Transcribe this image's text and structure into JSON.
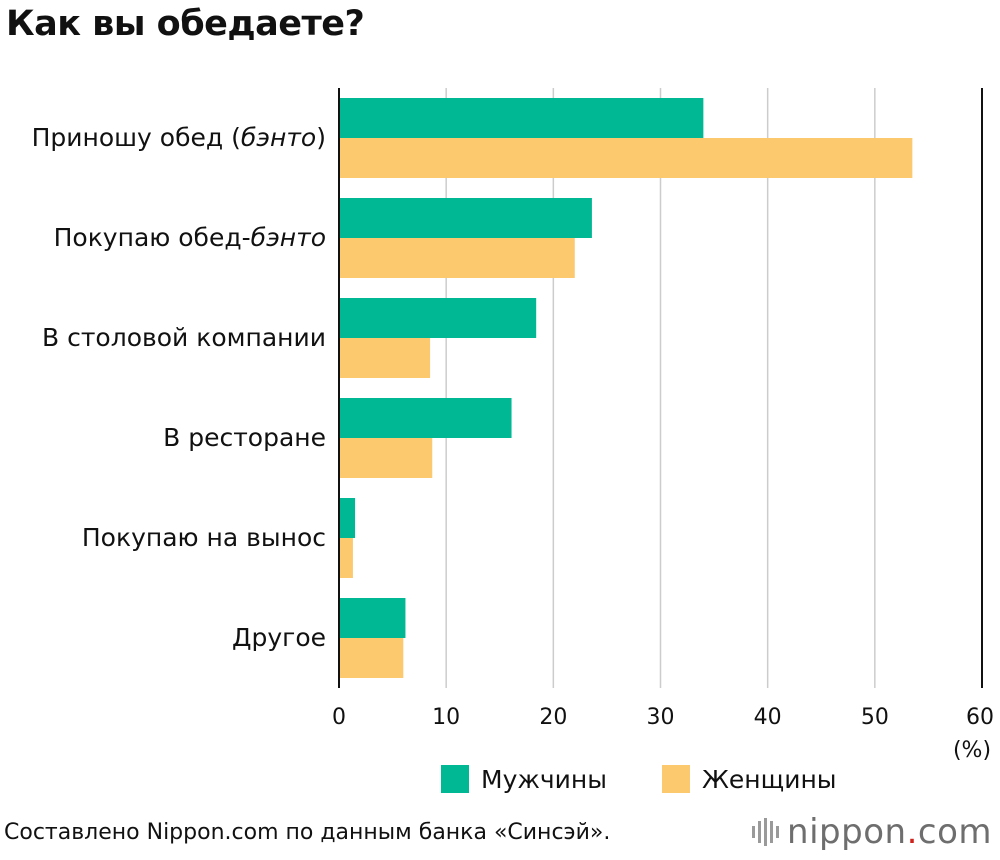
{
  "title": "Как вы обедаете?",
  "source": "Составлено Nippon.com по данным банка «Синсэй».",
  "logo": {
    "prefix": "nippon",
    "dot": ".",
    "suffix": "com",
    "mark_color": "#9a9a9a",
    "dot_color": "#d0211c"
  },
  "chart_data": {
    "type": "bar",
    "orientation": "horizontal",
    "title": "Как вы обедаете?",
    "categories": [
      {
        "plain": "Приношу обед (",
        "italic": "бэнто",
        "after": ")"
      },
      {
        "plain": "Покупаю обед-",
        "italic": "бэнто",
        "after": ""
      },
      {
        "plain": "В столовой компании",
        "italic": "",
        "after": ""
      },
      {
        "plain": "В ресторане",
        "italic": "",
        "after": ""
      },
      {
        "plain": "Покупаю на вынос",
        "italic": "",
        "after": ""
      },
      {
        "plain": "Другое",
        "italic": "",
        "after": ""
      }
    ],
    "series": [
      {
        "name": "Мужчины",
        "color": "#00b894",
        "values": [
          34.0,
          23.6,
          18.4,
          16.1,
          1.5,
          6.2
        ]
      },
      {
        "name": "Женщины",
        "color": "#fcc96e",
        "values": [
          53.5,
          22.0,
          8.5,
          8.7,
          1.3,
          6.0
        ]
      }
    ],
    "xlim": [
      0,
      60
    ],
    "xticks": [
      "0",
      "10",
      "20",
      "30",
      "40",
      "50",
      "60"
    ],
    "unit_label": "(%)",
    "grid": true,
    "legend_position": "bottom"
  }
}
